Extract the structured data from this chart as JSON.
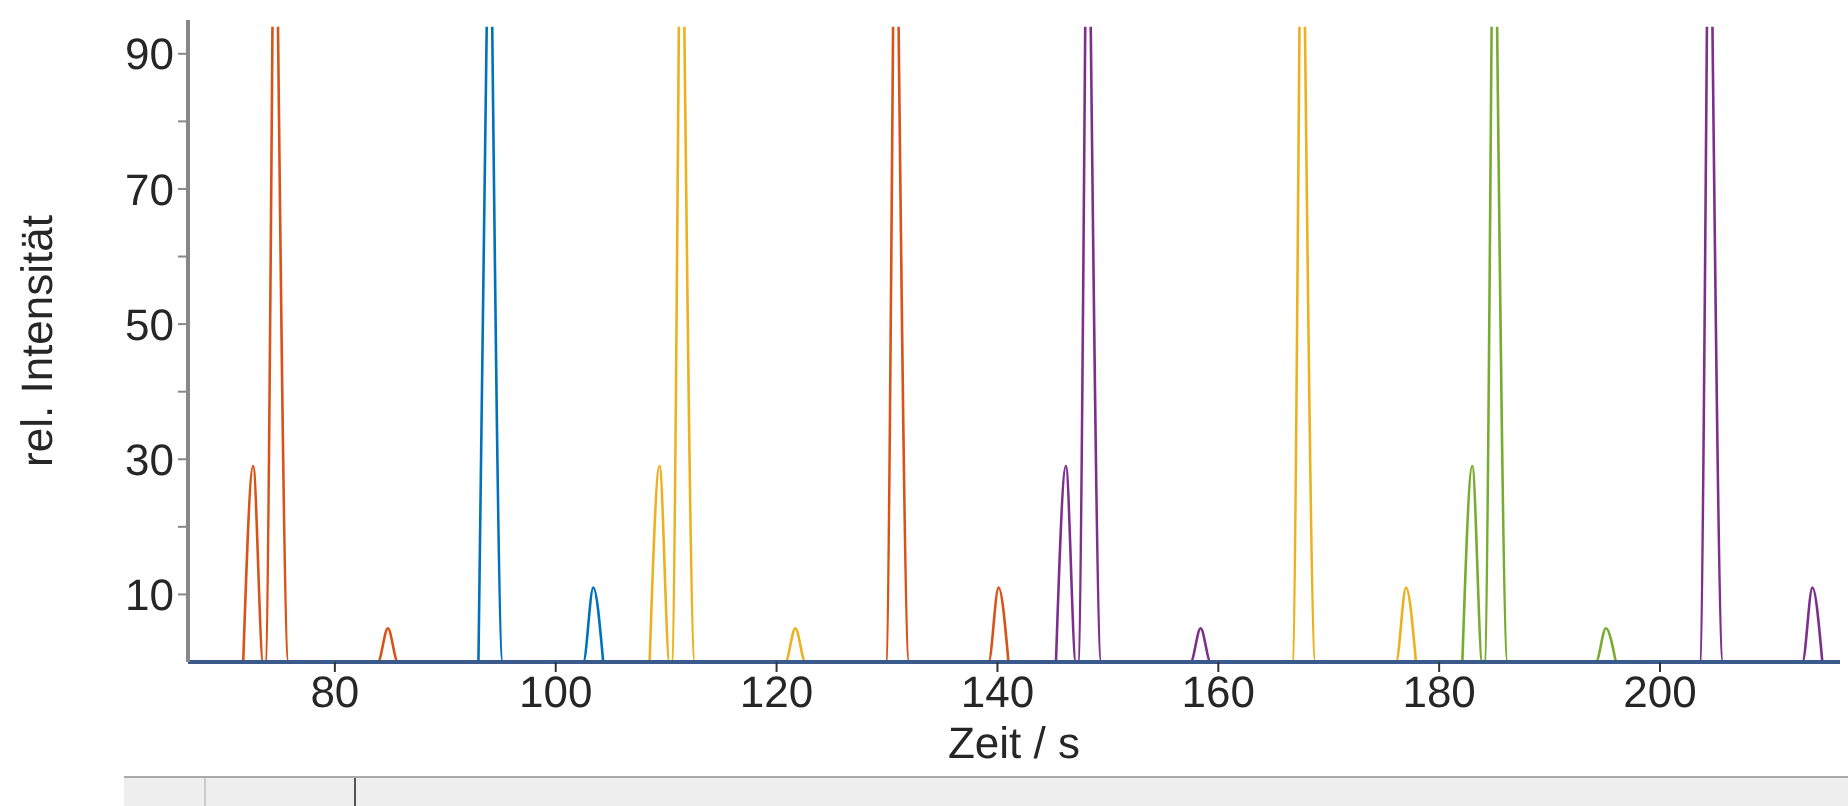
{
  "chart_data": {
    "type": "line",
    "xlabel": "Zeit / s",
    "ylabel": "rel. Intensität",
    "xlim": [
      66.7,
      216.3
    ],
    "xticks": [
      80,
      100,
      120,
      140,
      160,
      180,
      200
    ],
    "ylim": [
      0,
      95
    ],
    "yticks": [
      10,
      {
        "value": 20,
        "label": null
      },
      30,
      {
        "value": 40,
        "label": null
      },
      50,
      {
        "value": 60,
        "label": null
      },
      70,
      {
        "value": 80,
        "label": null
      },
      90
    ],
    "grid": false,
    "marker": "none",
    "line_style": "solid",
    "series": [
      {
        "color": "#d95319",
        "x": [
          71.7,
          72.6,
          73.5,
          73.7,
          74.35,
          74.6,
          74.85,
          75.8,
          83.9,
          84.8,
          85.7,
          129.9,
          130.55,
          130.8,
          131.05,
          132.0,
          139.2,
          140.1,
          141.0
        ],
        "values": [
          0,
          29,
          0,
          0,
          94,
          null,
          94,
          0,
          0,
          5,
          0,
          0,
          94,
          null,
          94,
          0,
          0,
          11,
          0
        ]
      },
      {
        "color": "#0072bd",
        "x": [
          93.0,
          93.75,
          94.0,
          94.25,
          95.2,
          102.5,
          103.4,
          104.3
        ],
        "values": [
          0,
          94,
          null,
          94,
          0,
          0,
          11,
          0
        ]
      },
      {
        "color": "#edb120",
        "x": [
          108.5,
          109.4,
          110.3,
          110.5,
          111.15,
          111.4,
          111.65,
          112.6,
          120.8,
          121.7,
          122.6,
          166.7,
          167.35,
          167.6,
          167.85,
          168.8,
          176.1,
          177.0,
          177.9
        ],
        "values": [
          0,
          29,
          0,
          0,
          94,
          null,
          94,
          0,
          0,
          5,
          0,
          0,
          94,
          null,
          94,
          0,
          0,
          11,
          0
        ]
      },
      {
        "color": "#7e2f8e",
        "x": [
          145.3,
          146.2,
          147.1,
          147.3,
          147.95,
          148.2,
          148.45,
          149.4,
          157.5,
          158.4,
          159.3,
          203.6,
          204.25,
          204.5,
          204.75,
          205.7,
          212.9,
          213.8,
          214.7
        ],
        "values": [
          0,
          29,
          0,
          0,
          94,
          null,
          94,
          0,
          0,
          5,
          0,
          0,
          94,
          null,
          94,
          0,
          0,
          11,
          0
        ]
      },
      {
        "color": "#77ac30",
        "x": [
          182.1,
          183.0,
          183.9,
          184.1,
          184.75,
          185.0,
          185.25,
          186.2,
          194.2,
          195.1,
          196.0
        ],
        "values": [
          0,
          29,
          0,
          0,
          94,
          null,
          94,
          0,
          0,
          5,
          0
        ]
      }
    ]
  }
}
